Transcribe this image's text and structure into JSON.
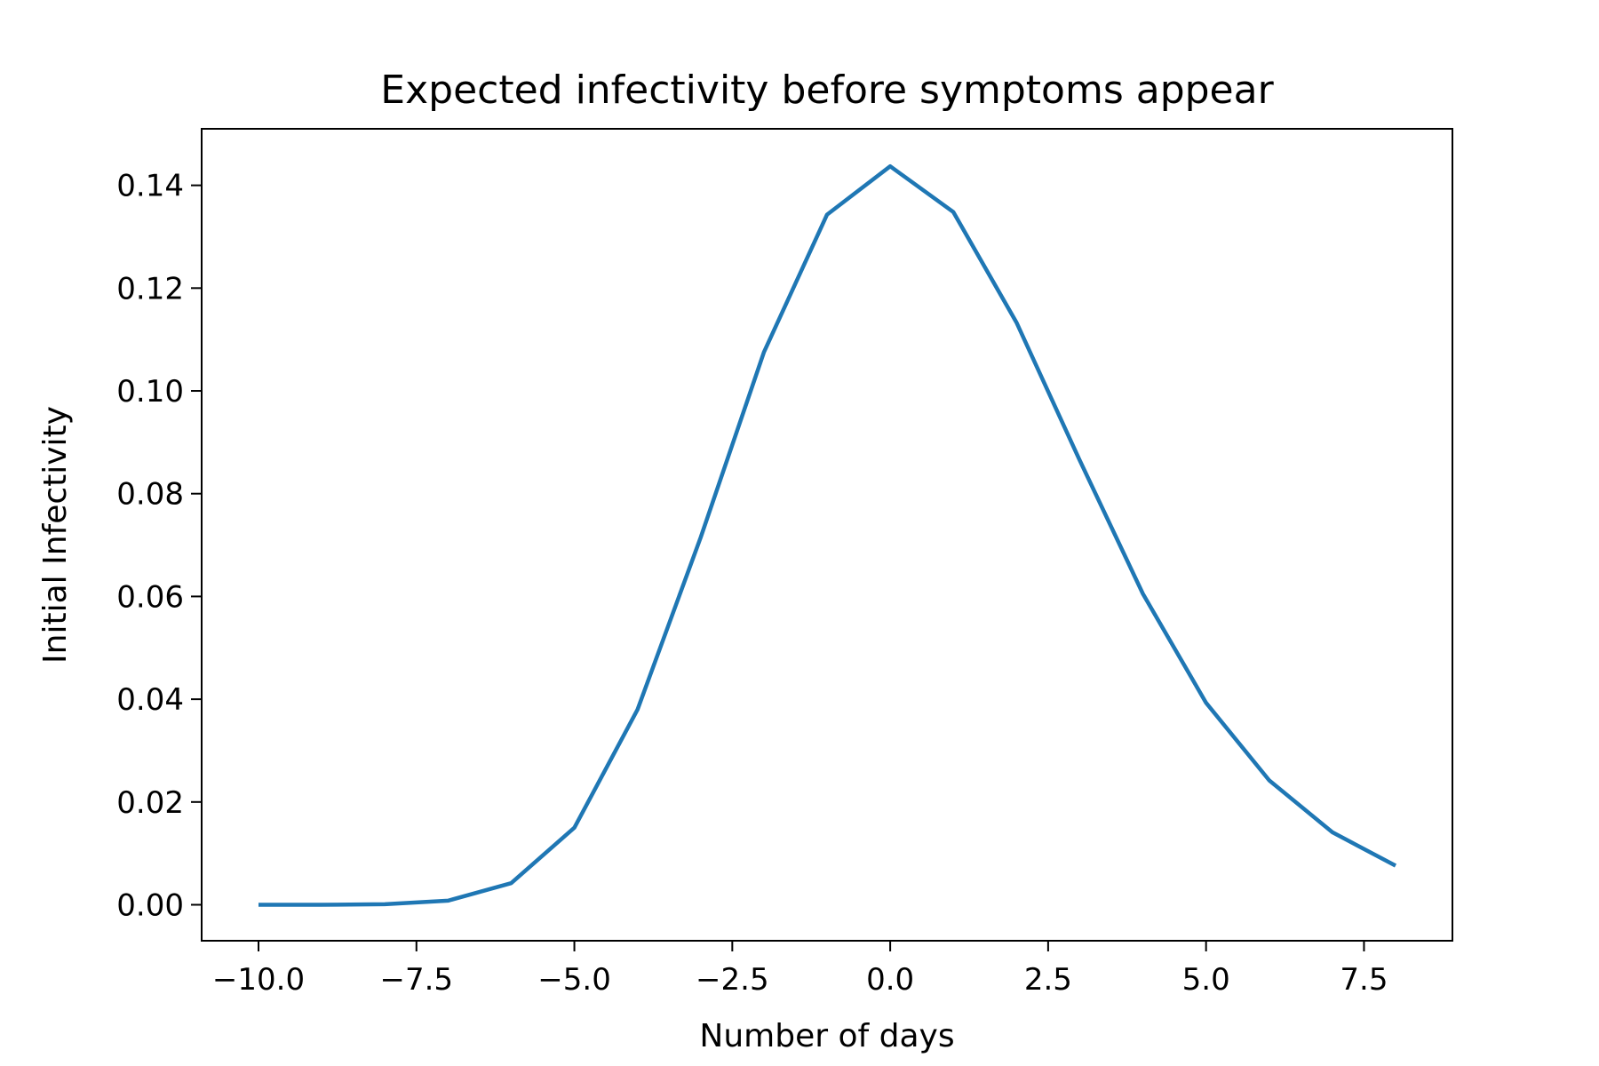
{
  "chart_data": {
    "type": "line",
    "title": "Expected infectivity before symptoms appear",
    "xlabel": "Number of days",
    "ylabel": "Initial Infectivity",
    "xlim": [
      -10.9,
      8.9
    ],
    "ylim": [
      -0.007,
      0.151
    ],
    "xticks": [
      -10.0,
      -7.5,
      -5.0,
      -2.5,
      0.0,
      2.5,
      5.0,
      7.5
    ],
    "xtick_labels": [
      "−10.0",
      "−7.5",
      "−5.0",
      "−2.5",
      "0.0",
      "2.5",
      "5.0",
      "7.5"
    ],
    "yticks": [
      0.0,
      0.02,
      0.04,
      0.06,
      0.08,
      0.1,
      0.12,
      0.14
    ],
    "ytick_labels": [
      "0.00",
      "0.02",
      "0.04",
      "0.06",
      "0.08",
      "0.10",
      "0.12",
      "0.14"
    ],
    "grid": false,
    "series": [
      {
        "color": "#1f77b4",
        "x": [
          -10,
          -9,
          -8,
          -7,
          -6,
          -5,
          -4,
          -3,
          -2,
          -1,
          0,
          1,
          2,
          3,
          4,
          5,
          6,
          7,
          8
        ],
        "y": [
          0.0,
          0.0,
          0.0001,
          0.0008,
          0.0042,
          0.015,
          0.038,
          0.0715,
          0.1075,
          0.1343,
          0.1437,
          0.1348,
          0.1133,
          0.0865,
          0.0605,
          0.0393,
          0.0242,
          0.0141,
          0.0076
        ]
      }
    ]
  }
}
